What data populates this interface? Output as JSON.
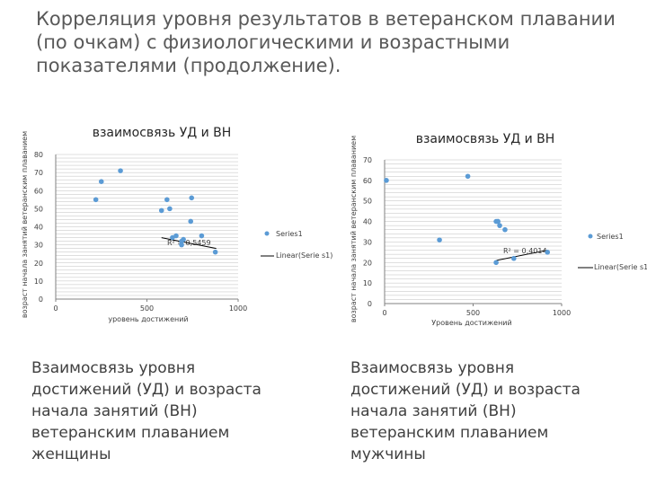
{
  "slide": {
    "title": "Корреляция уровня результатов в ветеранском плавании (по очкам) с физиологическими и возрастными показателями (продолжение).",
    "captions": [
      "Взаимосвязь уровня достижений (УД) и возраста начала занятий (ВН) ветеранским плаванием женщины",
      "Взаимосвязь уровня достижений (УД) и возраста начала занятий (ВН) ветеранским плаванием мужчины"
    ]
  },
  "colors": {
    "points": "#5b9bd5",
    "trendline": "#000000",
    "grid": "#bfbfbf"
  },
  "chart_data": [
    {
      "type": "scatter",
      "title": "взаимосвязь УД и ВН",
      "xlabel": "уровень достижений",
      "ylabel": "возраст начала занятий ветеранским плаванием",
      "xlim": [
        0,
        1000
      ],
      "ylim": [
        0,
        80
      ],
      "xticks": [
        0,
        500,
        1000
      ],
      "yticks": [
        0,
        10,
        20,
        30,
        40,
        50,
        60,
        70,
        80
      ],
      "grid": true,
      "legend": [
        "Series1",
        "Linear(Serie s1)"
      ],
      "annotation": "R² = 0,5459",
      "series": [
        {
          "name": "Series1",
          "x": [
            220,
            250,
            355,
            580,
            610,
            625,
            640,
            660,
            690,
            690,
            700,
            740,
            745,
            800,
            875
          ],
          "y": [
            55,
            65,
            71,
            49,
            55,
            50,
            34,
            35,
            32,
            30,
            33,
            43,
            56,
            35,
            26
          ]
        }
      ],
      "trendline": {
        "name": "Linear(Serie s1)",
        "x": [
          580,
          880
        ],
        "y": [
          34,
          28
        ]
      }
    },
    {
      "type": "scatter",
      "title": "взаимосвязь УД и ВН",
      "xlabel": "Уровень достижений",
      "ylabel": "возраст начала занятий ветеранским плаванием",
      "xlim": [
        0,
        1000
      ],
      "ylim": [
        0,
        70
      ],
      "xticks": [
        0,
        500,
        1000
      ],
      "yticks": [
        0,
        10,
        20,
        30,
        40,
        50,
        60,
        70
      ],
      "grid": true,
      "legend": [
        "Series1",
        "Linear(Serie s1)"
      ],
      "annotation": "R² = 0,4014",
      "series": [
        {
          "name": "Series1",
          "x": [
            10,
            310,
            470,
            630,
            640,
            650,
            640,
            680,
            630,
            730,
            920
          ],
          "y": [
            60,
            31,
            62,
            40,
            40,
            38,
            40,
            36,
            20,
            22,
            25
          ]
        }
      ],
      "trendline": {
        "name": "Linear(Serie s1)",
        "x": [
          630,
          920
        ],
        "y": [
          21,
          26
        ]
      }
    }
  ]
}
